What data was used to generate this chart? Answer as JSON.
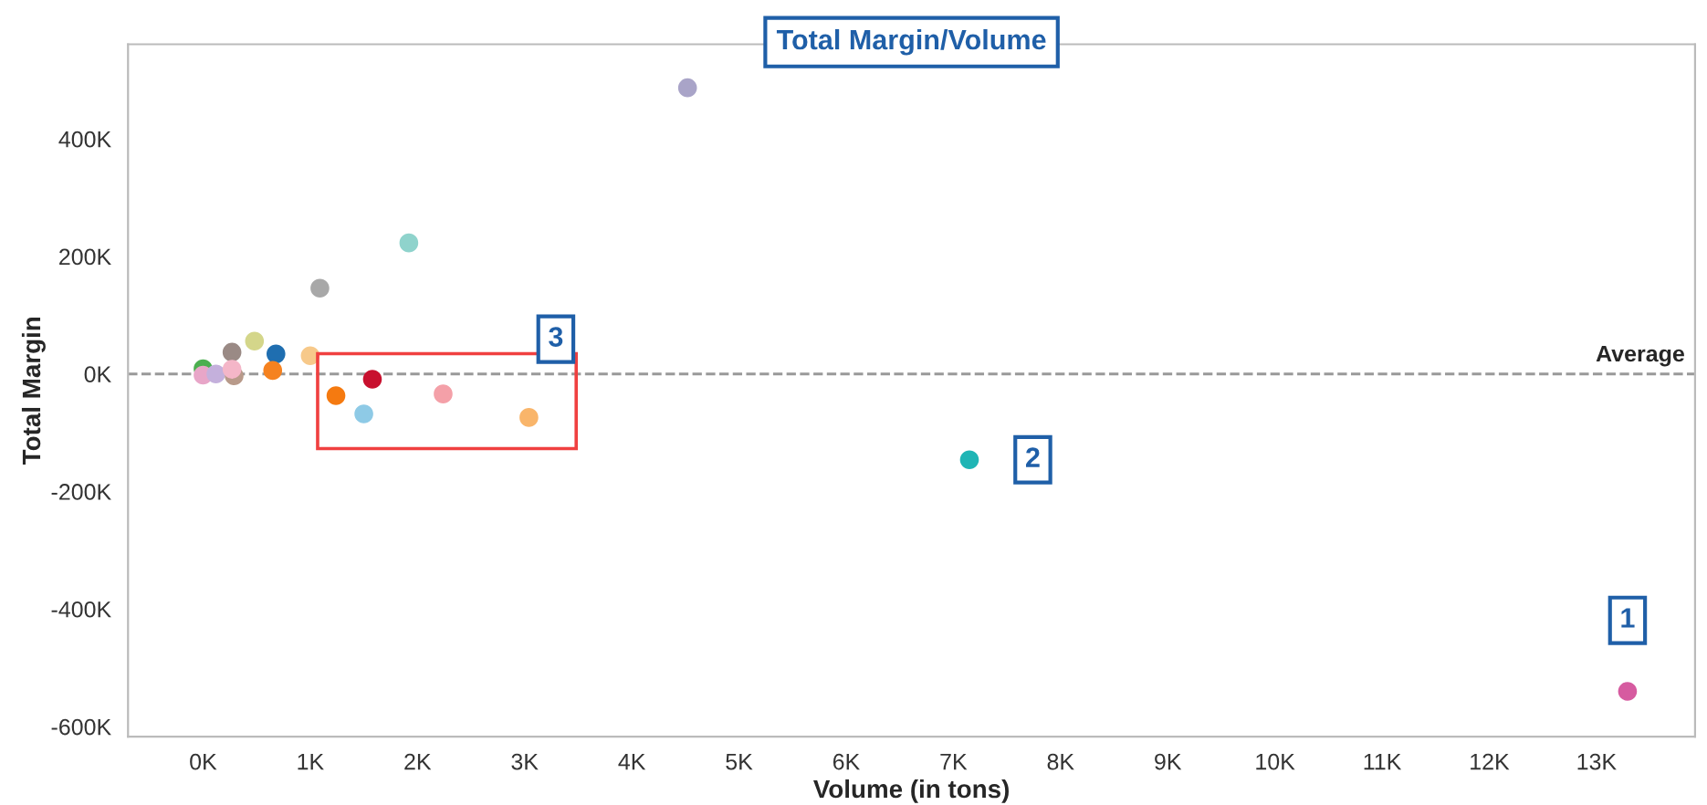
{
  "chart_data": {
    "type": "scatter",
    "title": "Total Margin/Volume",
    "xlabel": "Volume (in tons)",
    "ylabel": "Total Margin",
    "series": [
      {
        "x": [
          4520,
          1920,
          1090,
          480,
          680,
          1000,
          650,
          270,
          0,
          0,
          120,
          290,
          270,
          1240,
          1580,
          1500,
          2240,
          3040,
          7150,
          13290
        ],
        "values": [
          487000,
          223000,
          146000,
          56000,
          34000,
          31000,
          6000,
          37000,
          9000,
          -2000,
          0,
          -3000,
          8000,
          -37000,
          -9000,
          -68000,
          -34000,
          -74000,
          -146000,
          -540000
        ],
        "colors": [
          "#a9a4c8",
          "#8fd3cc",
          "#a8a8a8",
          "#d4d68a",
          "#1f6eb0",
          "#f7c98a",
          "#f58220",
          "#9a8a85",
          "#4caf50",
          "#e8a6c8",
          "#c4b0dc",
          "#b89a8a",
          "#f4b6c8",
          "#f57a10",
          "#c8102e",
          "#8ecae6",
          "#f4a0a8",
          "#f9b56a",
          "#1fb5b5",
          "#d65ba0"
        ]
      }
    ],
    "xlim": [
      -700,
      13920
    ],
    "ylim": [
      -617000,
      561000
    ],
    "xticks": [
      {
        "value": 0,
        "label": "0K"
      },
      {
        "value": 1000,
        "label": "1K"
      },
      {
        "value": 2000,
        "label": "2K"
      },
      {
        "value": 3000,
        "label": "3K"
      },
      {
        "value": 4000,
        "label": "4K"
      },
      {
        "value": 5000,
        "label": "5K"
      },
      {
        "value": 6000,
        "label": "6K"
      },
      {
        "value": 7000,
        "label": "7K"
      },
      {
        "value": 8000,
        "label": "8K"
      },
      {
        "value": 9000,
        "label": "9K"
      },
      {
        "value": 10000,
        "label": "10K"
      },
      {
        "value": 11000,
        "label": "11K"
      },
      {
        "value": 12000,
        "label": "12K"
      },
      {
        "value": 13000,
        "label": "13K"
      }
    ],
    "yticks": [
      {
        "value": -600000,
        "label": "-600K"
      },
      {
        "value": -400000,
        "label": "-400K"
      },
      {
        "value": -200000,
        "label": "-200K"
      },
      {
        "value": 0,
        "label": "0K"
      },
      {
        "value": 200000,
        "label": "200K"
      },
      {
        "value": 400000,
        "label": "400K"
      }
    ],
    "ref_lines": [
      {
        "axis": "y",
        "value": 0,
        "label": "Average",
        "color": "#999999",
        "line_style": "dashed"
      }
    ],
    "annotations": [
      {
        "text": "1",
        "x": 13290,
        "y": -540000
      },
      {
        "text": "2",
        "x": 7150,
        "y": -146000
      },
      "3"
    ],
    "grid": false,
    "marker": "circle",
    "legend": false
  }
}
